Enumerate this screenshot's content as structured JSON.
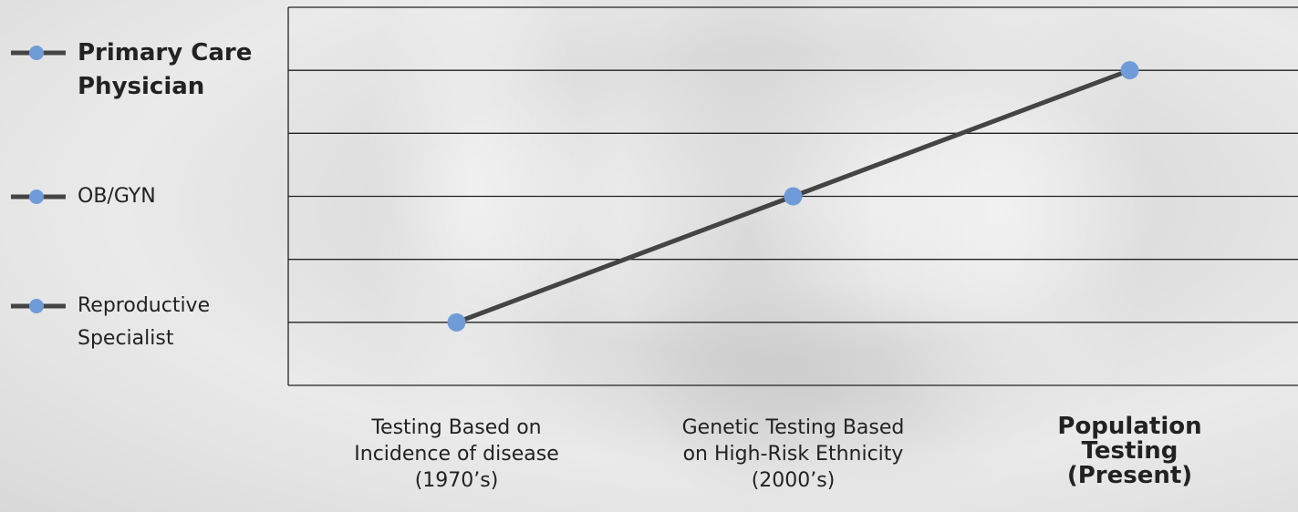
{
  "chart_data": {
    "type": "line",
    "categories": [
      "Testing Based on\nIncidence of disease\n(1970’s)",
      "Genetic Testing Based\non High-Risk Ethnicity\n(2000’s)",
      "Population\nTesting\n(Present)"
    ],
    "values": [
      1,
      3,
      5
    ],
    "color": "#444444",
    "marker_color": "#6f9bd8",
    "ylim": [
      0,
      6
    ],
    "yticks": [
      {
        "value": 1,
        "label": "Reproductive\nSpecialist"
      },
      {
        "value": 3,
        "label": "OB/GYN"
      },
      {
        "value": 5,
        "label": "Primary Care\nPhysician"
      }
    ],
    "minor_yticks": [
      2,
      4
    ],
    "grid": true,
    "highlight": {
      "category": 2,
      "ytick": 2
    }
  }
}
